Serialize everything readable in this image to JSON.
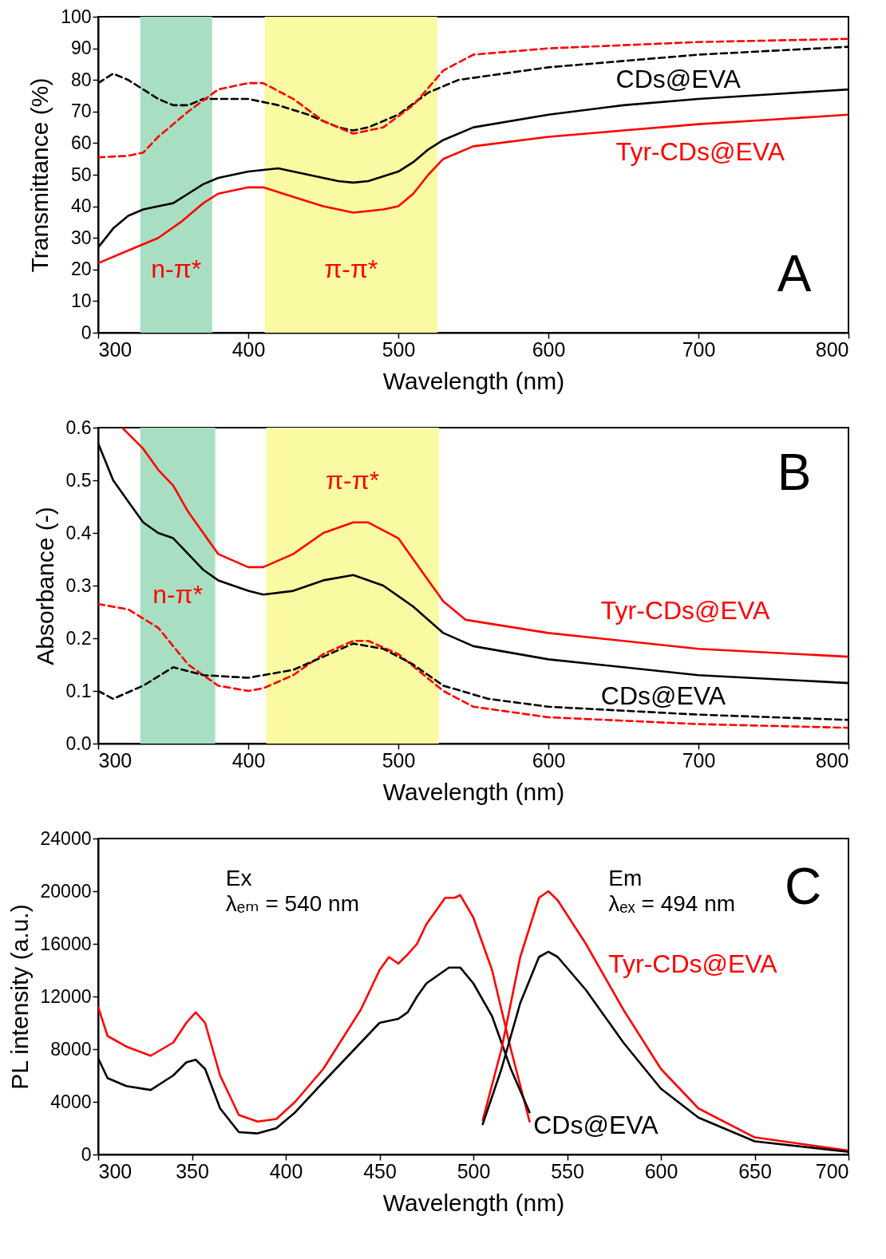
{
  "chart_data": [
    {
      "type": "line",
      "xlabel": "Wavelength (nm)",
      "ylabel": "Transmittance (%)",
      "xlim": [
        300,
        800
      ],
      "xticks": [
        300,
        400,
        500,
        600,
        700,
        800
      ],
      "ylim": [
        0,
        100
      ],
      "yticks": [
        0,
        10,
        20,
        30,
        40,
        50,
        60,
        70,
        80,
        90,
        100
      ],
      "grid": false,
      "bands": [
        {
          "axis": "x",
          "from": 328,
          "to": 376,
          "color": "#a8dfc2",
          "label": "n-π*"
        },
        {
          "axis": "x",
          "from": 411,
          "to": 526,
          "color": "#fafaa2",
          "label": "π-π*"
        }
      ],
      "series": [
        {
          "name": "CDs@EVA",
          "color": "#000000",
          "line_style": "solid",
          "x": [
            300,
            310,
            320,
            330,
            340,
            350,
            360,
            370,
            380,
            400,
            420,
            440,
            460,
            470,
            480,
            500,
            510,
            520,
            530,
            550,
            600,
            650,
            700,
            750,
            800
          ],
          "values": [
            27,
            33,
            37,
            39,
            40,
            41,
            44,
            47,
            49,
            51,
            52,
            50,
            48,
            47.5,
            48,
            51,
            54,
            58,
            61,
            65,
            69,
            72,
            74,
            75.5,
            77
          ]
        },
        {
          "name": "Tyr-CDs@EVA",
          "color": "#ff0000",
          "line_style": "solid",
          "x": [
            300,
            320,
            340,
            355,
            370,
            380,
            400,
            410,
            430,
            450,
            470,
            490,
            500,
            510,
            520,
            530,
            550,
            600,
            650,
            700,
            750,
            800
          ],
          "values": [
            22,
            26,
            30,
            35,
            41,
            44,
            46,
            46,
            43,
            40,
            38,
            39,
            40,
            44,
            50,
            55,
            59,
            62,
            64,
            66,
            67.5,
            69
          ]
        },
        {
          "color": "#000000",
          "line_style": "dashed",
          "x": [
            300,
            310,
            320,
            330,
            340,
            350,
            360,
            370,
            400,
            420,
            440,
            460,
            470,
            480,
            500,
            520,
            540,
            600,
            700,
            800
          ],
          "values": [
            79,
            82,
            80,
            77,
            74,
            72,
            72,
            74,
            74,
            72,
            69,
            65,
            64,
            65,
            69,
            76,
            80,
            84,
            88,
            90.5
          ]
        },
        {
          "color": "#ff0000",
          "line_style": "dashed",
          "x": [
            300,
            320,
            330,
            340,
            360,
            380,
            400,
            410,
            430,
            450,
            470,
            490,
            510,
            530,
            550,
            600,
            700,
            800
          ],
          "values": [
            55.5,
            56,
            57,
            62,
            70,
            77,
            79,
            79,
            74,
            67,
            63,
            65,
            72,
            83,
            88,
            90,
            92,
            93
          ]
        }
      ],
      "annotations": [
        "A"
      ]
    },
    {
      "type": "line",
      "xlabel": "Wavelength (nm)",
      "ylabel": "Absorbance (-)",
      "xlim": [
        300,
        800
      ],
      "xticks": [
        300,
        400,
        500,
        600,
        700,
        800
      ],
      "ylim": [
        0,
        0.6
      ],
      "yticks": [
        {
          "value": 0,
          "label": "0.0"
        },
        0.1,
        0.2,
        0.3,
        0.4,
        0.5,
        0.6
      ],
      "grid": false,
      "bands": [
        {
          "axis": "x",
          "from": 328,
          "to": 378,
          "color": "#a8dfc2",
          "label": "n-π*"
        },
        {
          "axis": "x",
          "from": 412,
          "to": 527,
          "color": "#fafaa2",
          "label": "π-π*"
        }
      ],
      "series": [
        {
          "name": "Tyr-CDs@EVA",
          "color": "#ff0000",
          "line_style": "solid",
          "x": [
            316,
            330,
            340,
            350,
            360,
            370,
            380,
            400,
            410,
            430,
            450,
            470,
            480,
            500,
            520,
            530,
            545,
            600,
            700,
            800
          ],
          "values": [
            0.6,
            0.56,
            0.52,
            0.49,
            0.44,
            0.4,
            0.36,
            0.335,
            0.335,
            0.36,
            0.4,
            0.42,
            0.42,
            0.39,
            0.31,
            0.27,
            0.235,
            0.21,
            0.18,
            0.165
          ]
        },
        {
          "color": "#000000",
          "line_style": "solid",
          "x": [
            300,
            310,
            320,
            330,
            340,
            350,
            360,
            370,
            380,
            400,
            410,
            430,
            450,
            470,
            490,
            510,
            530,
            550,
            600,
            700,
            800
          ],
          "values": [
            0.57,
            0.5,
            0.46,
            0.42,
            0.4,
            0.39,
            0.36,
            0.33,
            0.31,
            0.29,
            0.283,
            0.29,
            0.31,
            0.32,
            0.3,
            0.26,
            0.21,
            0.185,
            0.16,
            0.13,
            0.115
          ]
        },
        {
          "color": "#ff0000",
          "line_style": "dashed",
          "x": [
            300,
            320,
            340,
            360,
            380,
            400,
            410,
            430,
            450,
            470,
            480,
            500,
            530,
            550,
            600,
            700,
            800
          ],
          "values": [
            0.265,
            0.255,
            0.22,
            0.15,
            0.11,
            0.1,
            0.105,
            0.13,
            0.17,
            0.195,
            0.195,
            0.17,
            0.1,
            0.07,
            0.05,
            0.037,
            0.03
          ]
        },
        {
          "name": "CDs@EVA",
          "color": "#000000",
          "line_style": "dashed",
          "x": [
            300,
            310,
            330,
            350,
            370,
            400,
            430,
            450,
            470,
            490,
            510,
            530,
            560,
            600,
            700,
            800
          ],
          "values": [
            0.1,
            0.085,
            0.11,
            0.145,
            0.13,
            0.125,
            0.14,
            0.165,
            0.19,
            0.18,
            0.15,
            0.11,
            0.085,
            0.07,
            0.055,
            0.045
          ]
        }
      ],
      "annotations": [
        "B"
      ]
    },
    {
      "type": "line",
      "xlabel": "Wavelength (nm)",
      "ylabel": "PL intensity (a.u.)",
      "xlim": [
        300,
        700
      ],
      "xticks": [
        300,
        350,
        400,
        450,
        500,
        550,
        600,
        650,
        700
      ],
      "ylim": [
        0,
        24000
      ],
      "yticks": [
        0,
        4000,
        8000,
        12000,
        16000,
        20000,
        24000
      ],
      "grid": false,
      "series": [
        {
          "color": "#ff0000",
          "line_style": "solid",
          "x": [
            300,
            305,
            315,
            328,
            340,
            347,
            352,
            357,
            365,
            375,
            385,
            395,
            405,
            420,
            440,
            450,
            455,
            460,
            465,
            470,
            475,
            480,
            485,
            490,
            493,
            500,
            510,
            520,
            530
          ],
          "values": [
            11200,
            9000,
            8200,
            7500,
            8500,
            10000,
            10800,
            10000,
            6000,
            3000,
            2500,
            2700,
            4000,
            6500,
            11000,
            14000,
            15000,
            14500,
            15200,
            16000,
            17500,
            18500,
            19500,
            19500,
            19700,
            18000,
            14000,
            8000,
            2500
          ]
        },
        {
          "color": "#000000",
          "line_style": "solid",
          "x": [
            300,
            305,
            315,
            328,
            340,
            347,
            352,
            357,
            365,
            375,
            385,
            395,
            405,
            420,
            440,
            450,
            460,
            465,
            470,
            475,
            480,
            487,
            493,
            500,
            510,
            520,
            530
          ],
          "values": [
            7300,
            5800,
            5200,
            4900,
            6000,
            7000,
            7200,
            6500,
            3500,
            1700,
            1600,
            2000,
            3200,
            5500,
            8500,
            10000,
            10300,
            10800,
            12000,
            13000,
            13500,
            14200,
            14200,
            13000,
            10500,
            6500,
            3200
          ]
        },
        {
          "name": "Tyr-CDs@EVA",
          "color": "#ff0000",
          "line_style": "solid",
          "x": [
            505,
            515,
            525,
            535,
            540,
            545,
            560,
            580,
            600,
            620,
            650,
            700
          ],
          "values": [
            2600,
            8000,
            15000,
            19500,
            20000,
            19300,
            16000,
            11000,
            6500,
            3500,
            1300,
            300
          ]
        },
        {
          "name": "CDs@EVA",
          "color": "#000000",
          "line_style": "solid",
          "x": [
            505,
            515,
            525,
            535,
            540,
            545,
            560,
            580,
            600,
            620,
            650,
            700
          ],
          "values": [
            2300,
            6500,
            11500,
            15000,
            15400,
            15000,
            12500,
            8500,
            5000,
            2800,
            1000,
            200
          ]
        }
      ],
      "annotations": [
        "Ex",
        "λₑₘ = 540 nm",
        "Em",
        "λₑₓ = 494 nm",
        "C"
      ]
    }
  ]
}
